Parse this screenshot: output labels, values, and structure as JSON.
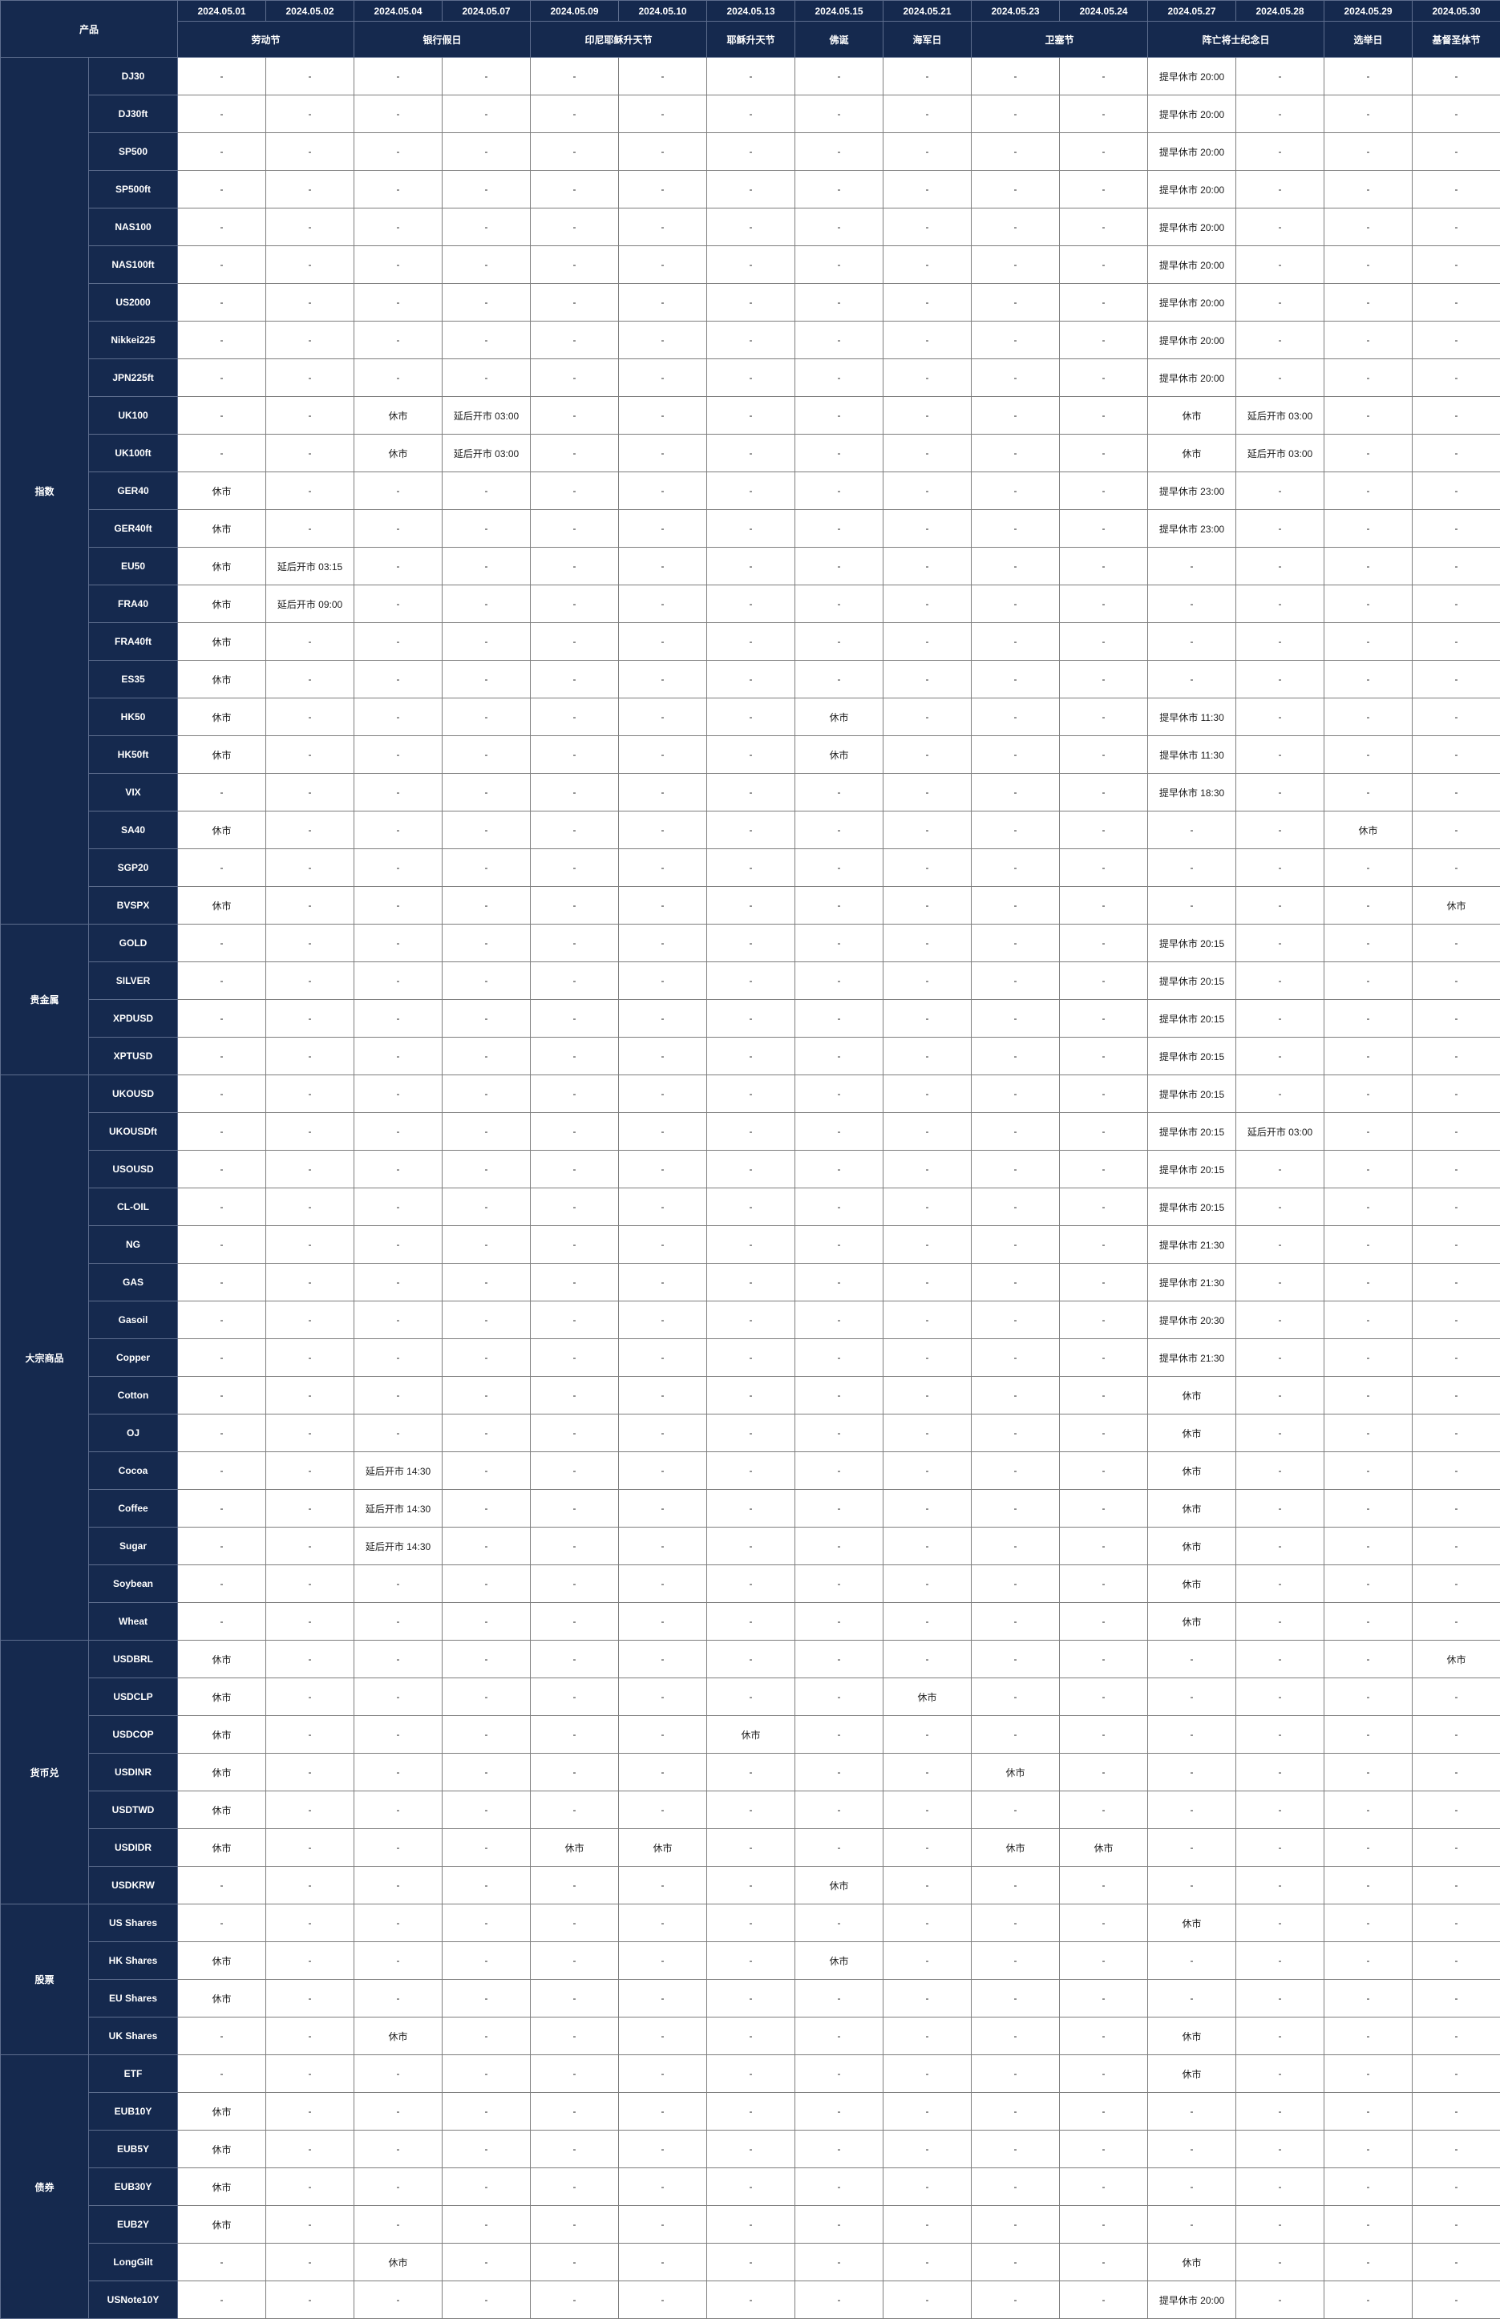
{
  "title_cell": "产品",
  "empty_value": "-",
  "colors": {
    "header_bg": "#15294e",
    "header_text": "#ffffff",
    "navy_border": "#5e6e8e",
    "grid_border": "#7d7d7d",
    "cell_bg": "#ffffff",
    "cell_text": "#1c1c1c"
  },
  "dates": [
    "2024.05.01",
    "2024.05.02",
    "2024.05.04",
    "2024.05.07",
    "2024.05.09",
    "2024.05.10",
    "2024.05.13",
    "2024.05.15",
    "2024.05.21",
    "2024.05.23",
    "2024.05.24",
    "2024.05.27",
    "2024.05.28",
    "2024.05.29",
    "2024.05.30"
  ],
  "holidays": [
    {
      "label": "劳动节",
      "span": 2
    },
    {
      "label": "银行假日",
      "span": 2
    },
    {
      "label": "印尼耶稣升天节",
      "span": 2
    },
    {
      "label": "耶稣升天节",
      "span": 1
    },
    {
      "label": "佛诞",
      "span": 1
    },
    {
      "label": "海军日",
      "span": 1
    },
    {
      "label": "卫塞节",
      "span": 2
    },
    {
      "label": "阵亡将士纪念日",
      "span": 2
    },
    {
      "label": "选举日",
      "span": 1
    },
    {
      "label": "基督圣体节",
      "span": 1
    }
  ],
  "categories": [
    {
      "name": "指数",
      "products": [
        {
          "name": "DJ30",
          "cells": {
            "11": "提早休市 20:00"
          }
        },
        {
          "name": "DJ30ft",
          "cells": {
            "11": "提早休市 20:00"
          }
        },
        {
          "name": "SP500",
          "cells": {
            "11": "提早休市 20:00"
          }
        },
        {
          "name": "SP500ft",
          "cells": {
            "11": "提早休市 20:00"
          }
        },
        {
          "name": "NAS100",
          "cells": {
            "11": "提早休市 20:00"
          }
        },
        {
          "name": "NAS100ft",
          "cells": {
            "11": "提早休市 20:00"
          }
        },
        {
          "name": "US2000",
          "cells": {
            "11": "提早休市 20:00"
          }
        },
        {
          "name": "Nikkei225",
          "cells": {
            "11": "提早休市 20:00"
          }
        },
        {
          "name": "JPN225ft",
          "cells": {
            "11": "提早休市 20:00"
          }
        },
        {
          "name": "UK100",
          "cells": {
            "2": "休市",
            "3": "延后开市 03:00",
            "11": "休市",
            "12": "延后开市 03:00"
          }
        },
        {
          "name": "UK100ft",
          "cells": {
            "2": "休市",
            "3": "延后开市 03:00",
            "11": "休市",
            "12": "延后开市 03:00"
          }
        },
        {
          "name": "GER40",
          "cells": {
            "0": "休市",
            "11": "提早休市 23:00"
          }
        },
        {
          "name": "GER40ft",
          "cells": {
            "0": "休市",
            "11": "提早休市 23:00"
          }
        },
        {
          "name": "EU50",
          "cells": {
            "0": "休市",
            "1": "延后开市 03:15"
          }
        },
        {
          "name": "FRA40",
          "cells": {
            "0": "休市",
            "1": "延后开市 09:00"
          }
        },
        {
          "name": "FRA40ft",
          "cells": {
            "0": "休市"
          }
        },
        {
          "name": "ES35",
          "cells": {
            "0": "休市"
          }
        },
        {
          "name": "HK50",
          "cells": {
            "0": "休市",
            "7": "休市",
            "11": "提早休市 11:30"
          }
        },
        {
          "name": "HK50ft",
          "cells": {
            "0": "休市",
            "7": "休市",
            "11": "提早休市 11:30"
          }
        },
        {
          "name": "VIX",
          "cells": {
            "11": "提早休市 18:30"
          }
        },
        {
          "name": "SA40",
          "cells": {
            "0": "休市",
            "13": "休市"
          }
        },
        {
          "name": "SGP20",
          "cells": {}
        },
        {
          "name": "BVSPX",
          "cells": {
            "0": "休市",
            "14": "休市"
          }
        }
      ]
    },
    {
      "name": "贵金属",
      "products": [
        {
          "name": "GOLD",
          "cells": {
            "11": "提早休市 20:15"
          }
        },
        {
          "name": "SILVER",
          "cells": {
            "11": "提早休市 20:15"
          }
        },
        {
          "name": "XPDUSD",
          "cells": {
            "11": "提早休市 20:15"
          }
        },
        {
          "name": "XPTUSD",
          "cells": {
            "11": "提早休市 20:15"
          }
        }
      ]
    },
    {
      "name": "大宗商品",
      "products": [
        {
          "name": "UKOUSD",
          "cells": {
            "11": "提早休市 20:15"
          }
        },
        {
          "name": "UKOUSDft",
          "cells": {
            "11": "提早休市 20:15",
            "12": "延后开市 03:00"
          }
        },
        {
          "name": "USOUSD",
          "cells": {
            "11": "提早休市 20:15"
          }
        },
        {
          "name": "CL-OIL",
          "cells": {
            "11": "提早休市 20:15"
          }
        },
        {
          "name": "NG",
          "cells": {
            "11": "提早休市 21:30"
          }
        },
        {
          "name": "GAS",
          "cells": {
            "11": "提早休市 21:30"
          }
        },
        {
          "name": "Gasoil",
          "cells": {
            "11": "提早休市 20:30"
          }
        },
        {
          "name": "Copper",
          "cells": {
            "11": "提早休市 21:30"
          }
        },
        {
          "name": "Cotton",
          "cells": {
            "11": "休市"
          }
        },
        {
          "name": "OJ",
          "cells": {
            "11": "休市"
          }
        },
        {
          "name": "Cocoa",
          "cells": {
            "2": "延后开市 14:30",
            "11": "休市"
          }
        },
        {
          "name": "Coffee",
          "cells": {
            "2": "延后开市 14:30",
            "11": "休市"
          }
        },
        {
          "name": "Sugar",
          "cells": {
            "2": "延后开市 14:30",
            "11": "休市"
          }
        },
        {
          "name": "Soybean",
          "cells": {
            "11": "休市"
          }
        },
        {
          "name": "Wheat",
          "cells": {
            "11": "休市"
          }
        }
      ]
    },
    {
      "name": "货币兑",
      "products": [
        {
          "name": "USDBRL",
          "cells": {
            "0": "休市",
            "14": "休市"
          }
        },
        {
          "name": "USDCLP",
          "cells": {
            "0": "休市",
            "8": "休市"
          }
        },
        {
          "name": "USDCOP",
          "cells": {
            "0": "休市",
            "6": "休市"
          }
        },
        {
          "name": "USDINR",
          "cells": {
            "0": "休市",
            "9": "休市"
          }
        },
        {
          "name": "USDTWD",
          "cells": {
            "0": "休市"
          }
        },
        {
          "name": "USDIDR",
          "cells": {
            "0": "休市",
            "4": "休市",
            "5": "休市",
            "9": "休市",
            "10": "休市"
          }
        },
        {
          "name": "USDKRW",
          "cells": {
            "7": "休市"
          }
        }
      ]
    },
    {
      "name": "股票",
      "products": [
        {
          "name": "US Shares",
          "cells": {
            "11": "休市"
          }
        },
        {
          "name": "HK Shares",
          "cells": {
            "0": "休市",
            "7": "休市"
          }
        },
        {
          "name": "EU Shares",
          "cells": {
            "0": "休市"
          }
        },
        {
          "name": "UK Shares",
          "cells": {
            "2": "休市",
            "11": "休市"
          }
        }
      ]
    },
    {
      "name": "债券",
      "products": [
        {
          "name": "ETF",
          "cells": {
            "11": "休市"
          }
        },
        {
          "name": "EUB10Y",
          "cells": {
            "0": "休市"
          }
        },
        {
          "name": "EUB5Y",
          "cells": {
            "0": "休市"
          }
        },
        {
          "name": "EUB30Y",
          "cells": {
            "0": "休市"
          }
        },
        {
          "name": "EUB2Y",
          "cells": {
            "0": "休市"
          }
        },
        {
          "name": "LongGilt",
          "cells": {
            "2": "休市",
            "11": "休市"
          }
        },
        {
          "name": "USNote10Y",
          "cells": {
            "11": "提早休市 20:00"
          }
        }
      ]
    }
  ]
}
